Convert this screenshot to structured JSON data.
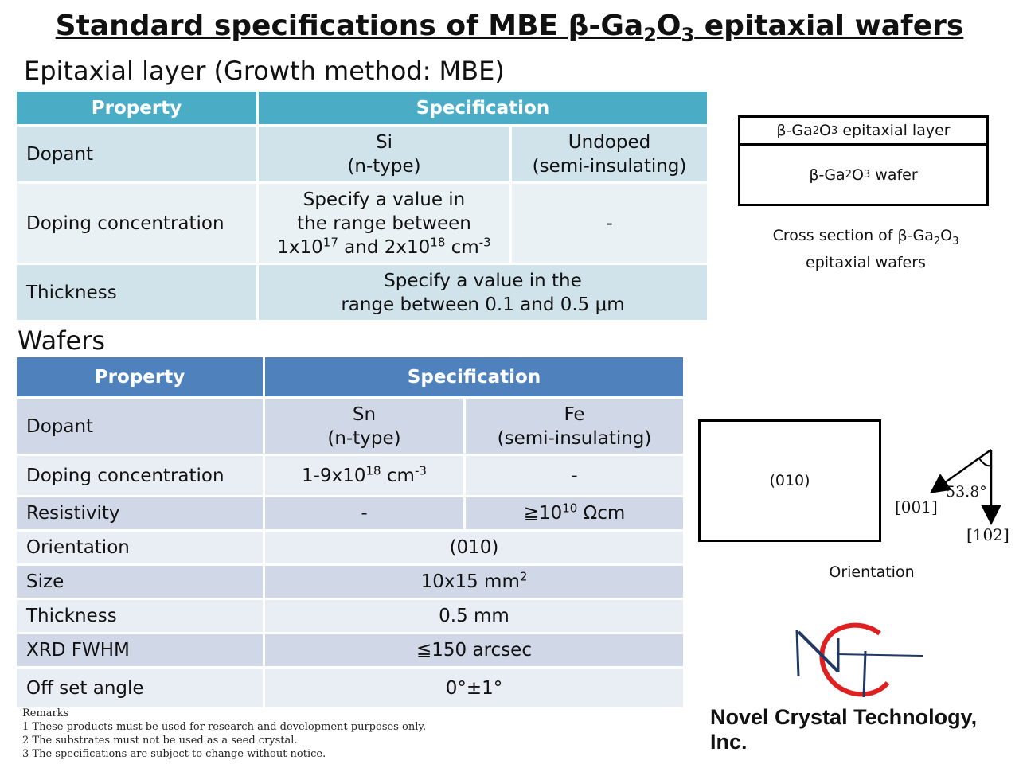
{
  "title": {
    "pre": "Standard specifications of MBE β-Ga",
    "sub1": "2",
    "mid": "O",
    "sub2": "3",
    "post": " epitaxial wafers"
  },
  "epi": {
    "heading": "Epitaxial layer (Growth method: MBE)",
    "col_property": "Property",
    "col_spec": "Specification",
    "dopant_label": "Dopant",
    "dopant_si_1": "Si",
    "dopant_si_2": "(n-type)",
    "dopant_undoped_1": "Undoped",
    "dopant_undoped_2": "(semi-insulating)",
    "conc_label": "Doping concentration",
    "conc_line1": "Specify a value in",
    "conc_line2": "the range between",
    "conc_a": "1x10",
    "conc_a_exp": "17",
    "conc_and": " and 2x10",
    "conc_b_exp": "18",
    "conc_unit": " cm",
    "conc_unit_exp": "-3",
    "conc_undoped": "-",
    "thick_label": "Thickness",
    "thick_line1": "Specify a value in the",
    "thick_line2": "range between 0.1 and 0.5 μm"
  },
  "wafer": {
    "heading": "Wafers",
    "col_property": "Property",
    "col_spec": "Specification",
    "dopant_label": "Dopant",
    "dopant_sn_1": "Sn",
    "dopant_sn_2": "(n-type)",
    "dopant_fe_1": "Fe",
    "dopant_fe_2": "(semi-insulating)",
    "conc_label": "Doping concentration",
    "conc_sn": "1-9x10",
    "conc_sn_exp": "18",
    "conc_sn_unit": " cm",
    "conc_sn_unit_exp": "-3",
    "conc_fe": "-",
    "res_label": "Resistivity",
    "res_sn": "-",
    "res_fe": "≧10",
    "res_fe_exp": "10",
    "res_fe_unit": " Ωcm",
    "orient_label": "Orientation",
    "orient_val": "(010)",
    "size_label": "Size",
    "size_val": "10x15 mm",
    "size_exp": "2",
    "thick_label": "Thickness",
    "thick_val": "0.5 mm",
    "xrd_label": "XRD FWHM",
    "xrd_val": "≦150 arcsec",
    "offset_label": "Off set angle",
    "offset_val": "0°±1°"
  },
  "remarks": {
    "heading": "Remarks",
    "items": [
      "1 These products must be used for research and development purposes only.",
      "2 The substrates must not be used as a seed crystal.",
      "3 The specifications are subject to change without notice."
    ]
  },
  "cross_section": {
    "layer_pre": "β-Ga",
    "layer_sub1": "2",
    "layer_mid": "O",
    "layer_sub2": "3",
    "layer_post": " epitaxial layer",
    "wafer_pre": "β-Ga",
    "wafer_sub1": "2",
    "wafer_mid": "O",
    "wafer_sub2": "3",
    "wafer_post": " wafer",
    "caption_pre": "Cross section of β-Ga",
    "caption_sub1": "2",
    "caption_mid": "O",
    "caption_sub2": "3",
    "caption_line2": "epitaxial wafers"
  },
  "orientation": {
    "face": "(010)",
    "angle": "53.8°",
    "dir_001": "[001]",
    "dir_102": "[102]",
    "caption": "Orientation"
  },
  "logo": {
    "company": "Novel Crystal Technology, Inc.",
    "accent_red": "#e02020",
    "accent_navy": "#1f3864"
  }
}
